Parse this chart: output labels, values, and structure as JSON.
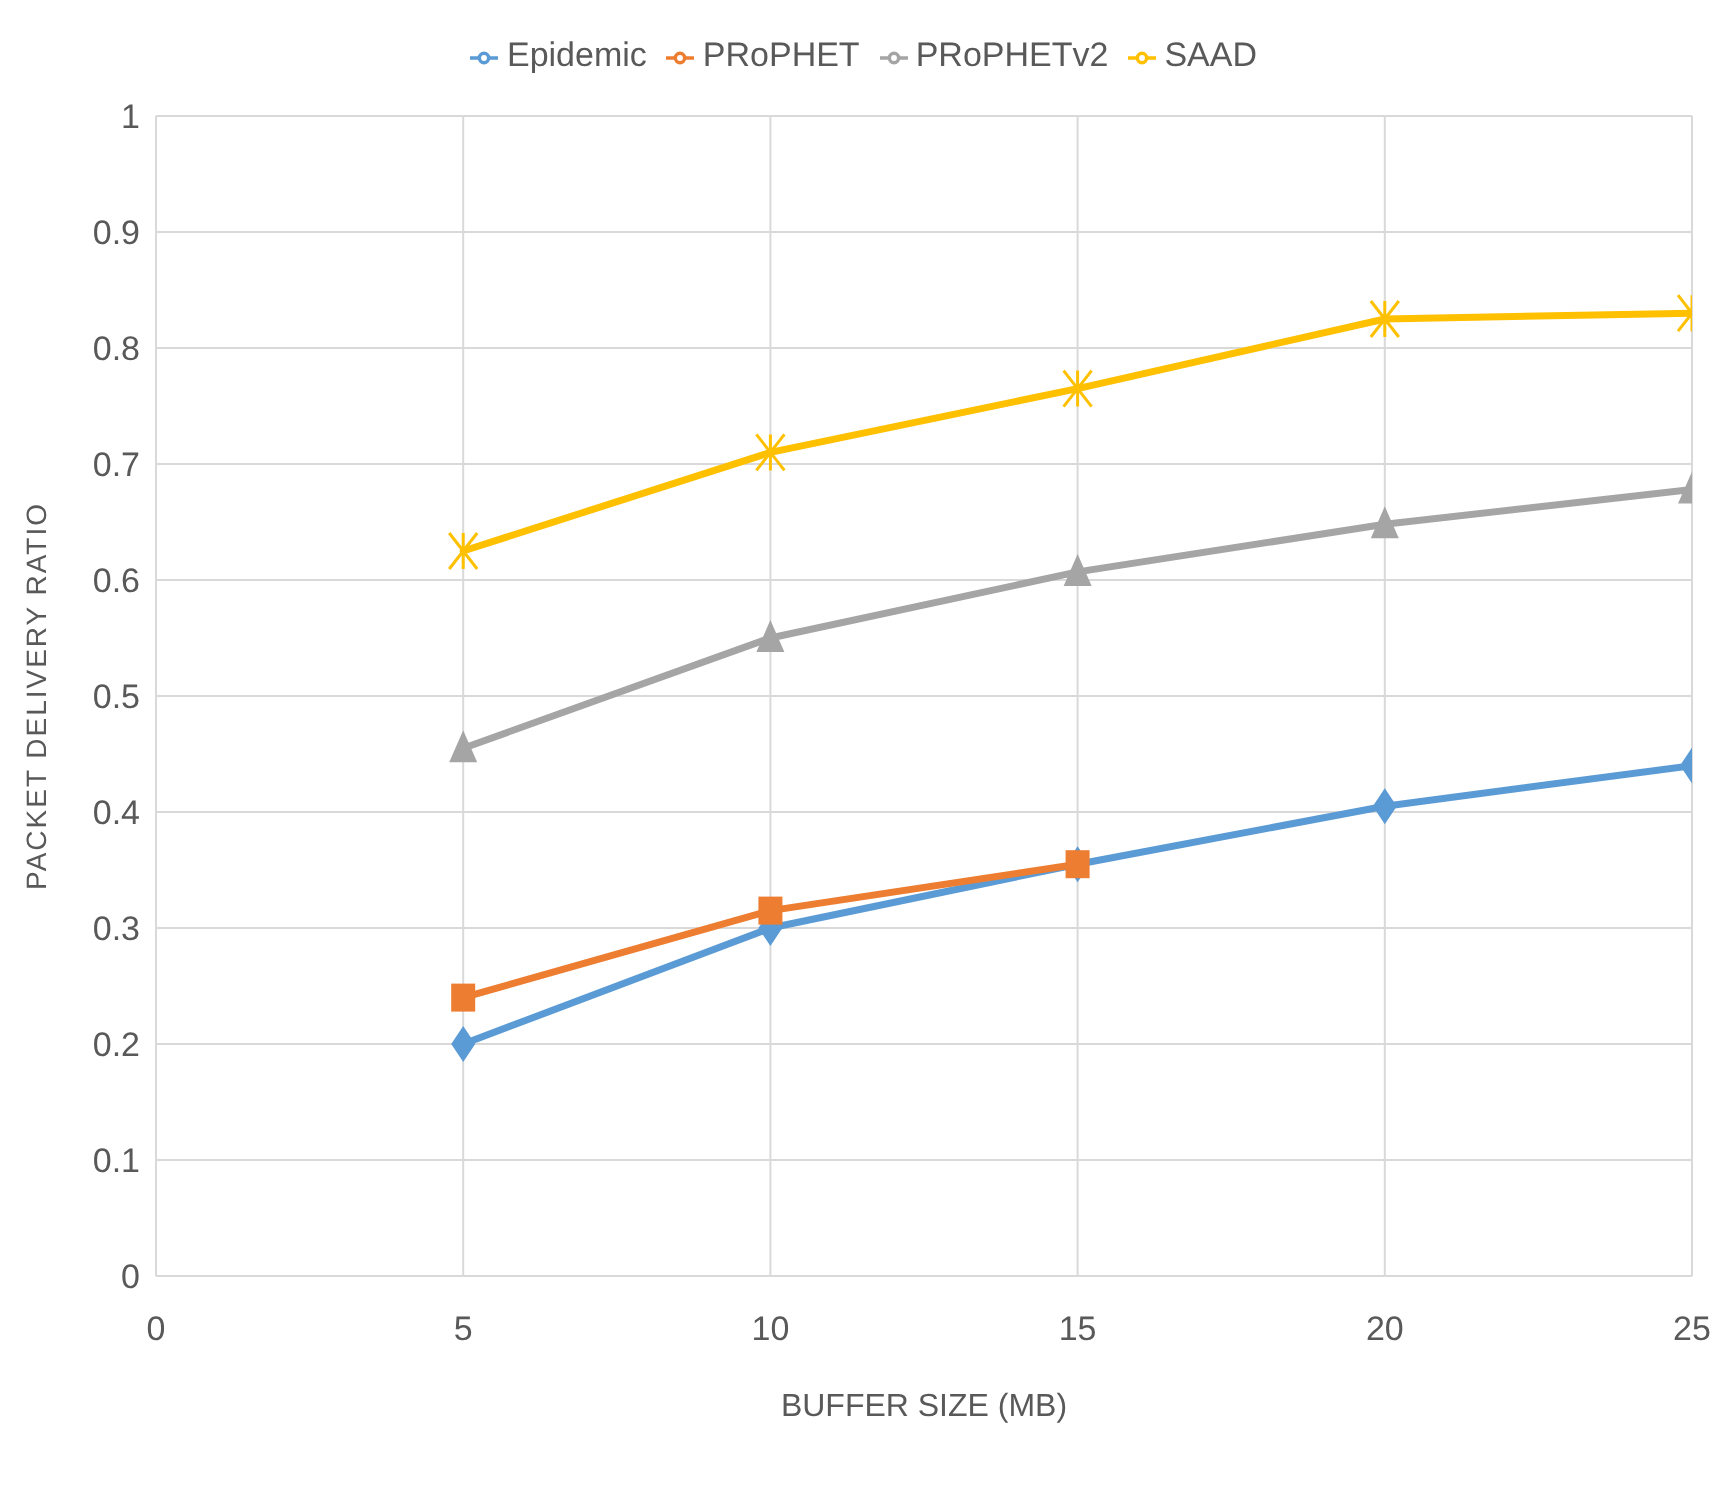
{
  "chart_data": {
    "type": "line",
    "xlabel": "BUFFER SIZE (MB)",
    "ylabel": "PACKET DELIVERY RATIO",
    "x": [
      5,
      10,
      15,
      20,
      25
    ],
    "series": [
      {
        "name": "Epidemic",
        "color": "#5b9bd5",
        "marker": "diamond",
        "values": [
          0.2,
          0.3,
          0.355,
          0.405,
          0.44
        ]
      },
      {
        "name": "PRoPHET",
        "color": "#ed7d31",
        "marker": "square",
        "values": [
          0.24,
          0.315,
          0.355,
          null,
          null
        ]
      },
      {
        "name": "PRoPHETv2",
        "color": "#a5a5a5",
        "marker": "triangle",
        "values": [
          0.455,
          0.55,
          0.607,
          0.648,
          0.678
        ]
      },
      {
        "name": "SAAD",
        "color": "#ffc000",
        "marker": "cross",
        "values": [
          0.625,
          0.71,
          0.765,
          0.825,
          0.83
        ]
      }
    ],
    "xlim": [
      0,
      25
    ],
    "xticks": [
      0,
      5,
      10,
      15,
      20,
      25
    ],
    "ylim": [
      0,
      1
    ],
    "yticks": [
      0,
      0.1,
      0.2,
      0.3,
      0.4,
      0.5,
      0.6,
      0.7,
      0.8,
      0.9,
      1
    ],
    "grid": true,
    "legend": "top"
  }
}
